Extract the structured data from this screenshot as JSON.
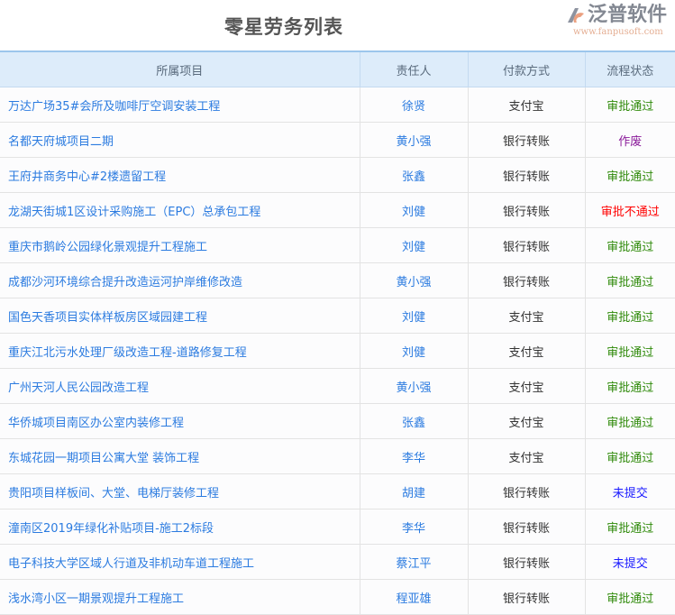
{
  "title": "零星劳务列表",
  "columns": [
    "所属项目",
    "责任人",
    "付款方式",
    "流程状态"
  ],
  "status_colors": {
    "审批通过": "#2f8a0a",
    "作废": "#8a1a9a",
    "审批不通过": "#ff0000",
    "未提交": "#1a1aff"
  },
  "rows": [
    {
      "project": "万达广场35#会所及咖啡厅空调安装工程",
      "person": "徐贤",
      "payment": "支付宝",
      "status": "审批通过"
    },
    {
      "project": "名都天府城项目二期",
      "person": "黄小强",
      "payment": "银行转账",
      "status": "作废"
    },
    {
      "project": "王府井商务中心#2楼遗留工程",
      "person": "张鑫",
      "payment": "银行转账",
      "status": "审批通过"
    },
    {
      "project": "龙湖天街城1区设计采购施工（EPC）总承包工程",
      "person": "刘健",
      "payment": "银行转账",
      "status": "审批不通过"
    },
    {
      "project": "重庆市鹅岭公园绿化景观提升工程施工",
      "person": "刘健",
      "payment": "银行转账",
      "status": "审批通过"
    },
    {
      "project": "成都沙河环境综合提升改造运河护岸维修改造",
      "person": "黄小强",
      "payment": "银行转账",
      "status": "审批通过"
    },
    {
      "project": "国色天香项目实体样板房区域园建工程",
      "person": "刘健",
      "payment": "支付宝",
      "status": "审批通过"
    },
    {
      "project": "重庆江北污水处理厂级改造工程-道路修复工程",
      "person": "刘健",
      "payment": "支付宝",
      "status": "审批通过"
    },
    {
      "project": "广州天河人民公园改造工程",
      "person": "黄小强",
      "payment": "支付宝",
      "status": "审批通过"
    },
    {
      "project": "华侨城项目南区办公室内装修工程",
      "person": "张鑫",
      "payment": "支付宝",
      "status": "审批通过"
    },
    {
      "project": "东城花园一期项目公寓大堂 装饰工程",
      "person": "李华",
      "payment": "支付宝",
      "status": "审批通过"
    },
    {
      "project": "贵阳项目样板间、大堂、电梯厅装修工程",
      "person": "胡建",
      "payment": "银行转账",
      "status": "未提交"
    },
    {
      "project": "潼南区2019年绿化补贴项目-施工2标段",
      "person": "李华",
      "payment": "银行转账",
      "status": "审批通过"
    },
    {
      "project": "电子科技大学区域人行道及非机动车道工程施工",
      "person": "蔡江平",
      "payment": "银行转账",
      "status": "未提交"
    },
    {
      "project": "浅水湾小区一期景观提升工程施工",
      "person": "程亚雄",
      "payment": "银行转账",
      "status": "审批通过"
    }
  ],
  "watermark": {
    "name": "泛普软件",
    "url": "www.fanpusoft.com"
  }
}
